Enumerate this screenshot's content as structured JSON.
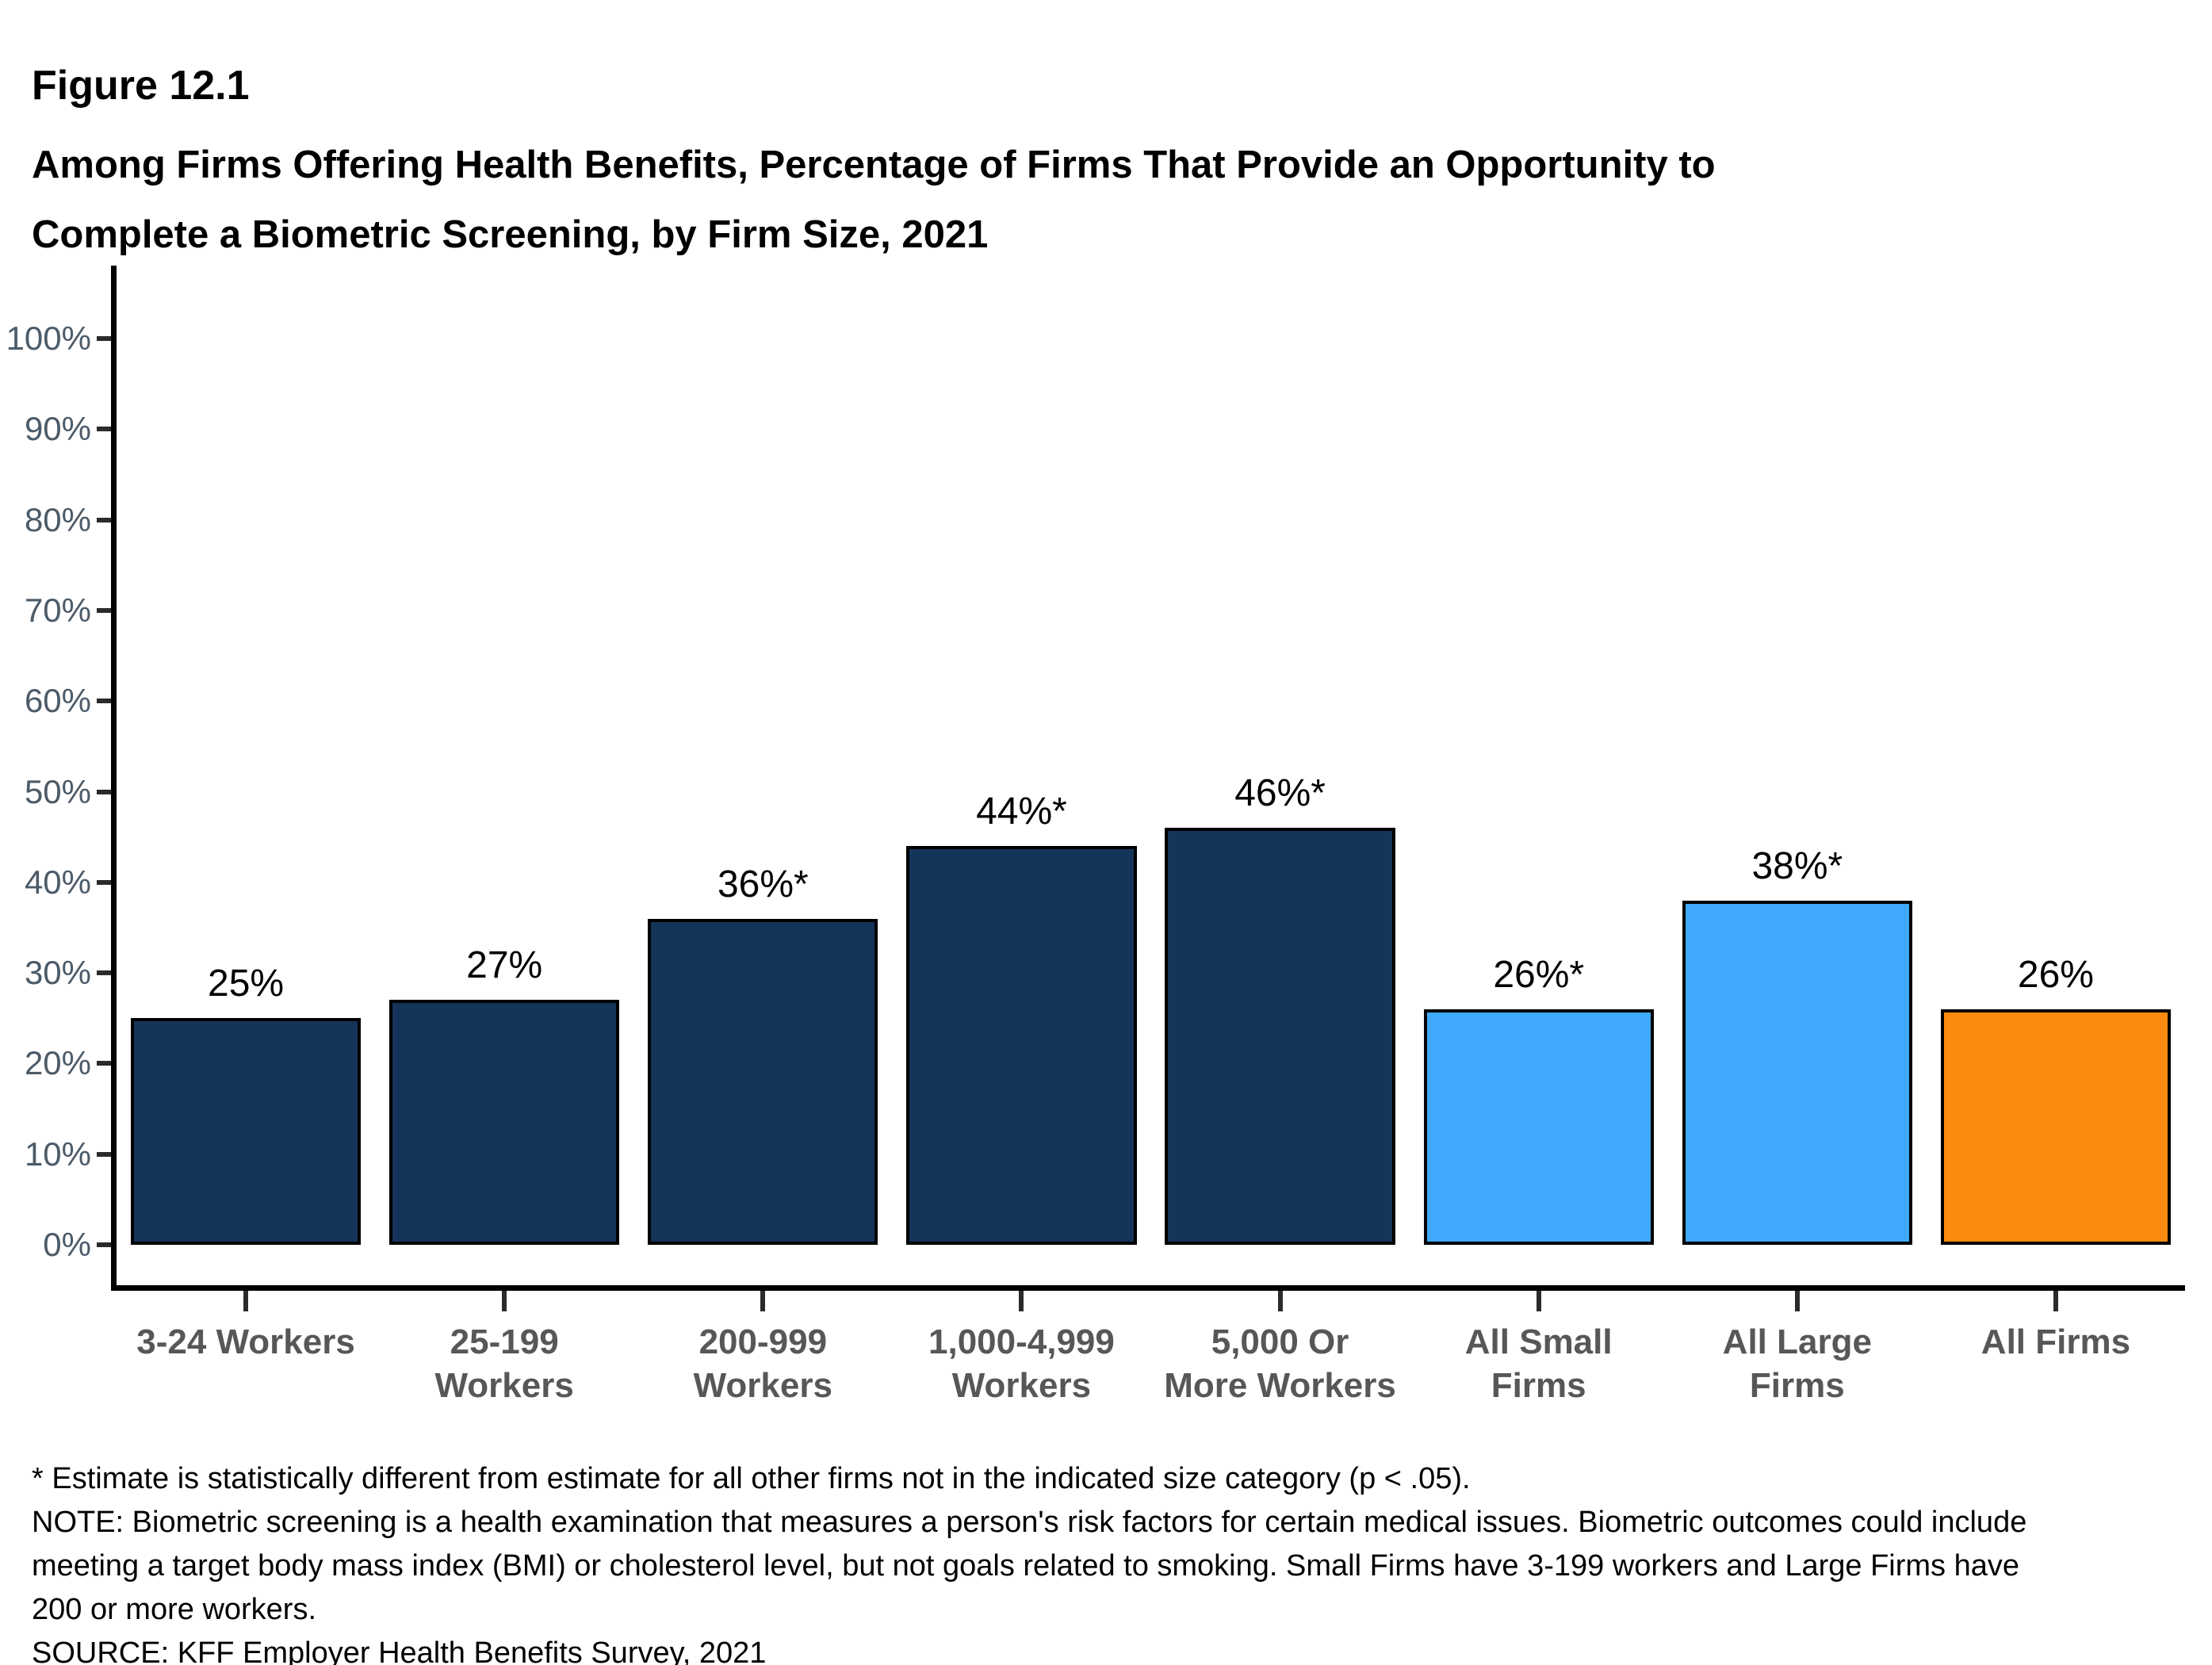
{
  "figure": {
    "label": "Figure 12.1",
    "title_line1": "Among Firms Offering Health Benefits, Percentage of Firms That Provide an Opportunity to",
    "title_line2": "Complete a Biometric Screening, by Firm Size, 2021"
  },
  "chart_data": {
    "type": "bar",
    "title": "Among Firms Offering Health Benefits, Percentage of Firms That Provide an Opportunity to Complete a Biometric Screening, by Firm Size, 2021",
    "categories": [
      "3-24 Workers",
      "25-199 Workers",
      "200-999 Workers",
      "1,000-4,999 Workers",
      "5,000 Or More Workers",
      "All Small Firms",
      "All Large Firms",
      "All Firms"
    ],
    "category_label_lines": [
      [
        "3-24 Workers"
      ],
      [
        "25-199",
        "Workers"
      ],
      [
        "200-999",
        "Workers"
      ],
      [
        "1,000-4,999",
        "Workers"
      ],
      [
        "5,000 Or",
        "More Workers"
      ],
      [
        "All Small",
        "Firms"
      ],
      [
        "All Large",
        "Firms"
      ],
      [
        "All Firms"
      ]
    ],
    "values": [
      25,
      27,
      36,
      44,
      46,
      26,
      38,
      26
    ],
    "data_labels": [
      "25%",
      "27%",
      "36%*",
      "44%*",
      "46%*",
      "26%*",
      "38%*",
      "26%"
    ],
    "bar_colors": [
      "navy",
      "navy",
      "navy",
      "navy",
      "navy",
      "blue",
      "blue",
      "orange"
    ],
    "xlabel": "",
    "ylabel": "",
    "ylim": [
      0,
      100
    ],
    "yticks": [
      {
        "value": 0,
        "label": "0%"
      },
      {
        "value": 10,
        "label": "10%"
      },
      {
        "value": 20,
        "label": "20%"
      },
      {
        "value": 30,
        "label": "30%"
      },
      {
        "value": 40,
        "label": "40%"
      },
      {
        "value": 50,
        "label": "50%"
      },
      {
        "value": 60,
        "label": "60%"
      },
      {
        "value": 70,
        "label": "70%"
      },
      {
        "value": 80,
        "label": "80%"
      },
      {
        "value": 90,
        "label": "90%"
      },
      {
        "value": 100,
        "label": "100%"
      }
    ],
    "grid": false,
    "legend": false
  },
  "footnotes": {
    "asterisk": "* Estimate is statistically different from estimate for all other firms not in the indicated size category (p < .05).",
    "note_lines": [
      "NOTE: Biometric screening is a health examination that measures a person's risk factors for certain medical issues. Biometric outcomes could include",
      "meeting a target body mass index (BMI) or cholesterol level, but not goals related to smoking. Small Firms have 3-199 workers and Large Firms have",
      "200 or more workers."
    ],
    "source": "SOURCE: KFF Employer Health Benefits Survey, 2021"
  },
  "colors": {
    "navy": "#153459",
    "blue": "#3FA9FC",
    "orange": "#FB8B10",
    "axis": "#000000",
    "tick": "#2B2B2B",
    "y_label": "#4C5B68",
    "x_label": "#575757",
    "data_label": "#000000"
  }
}
